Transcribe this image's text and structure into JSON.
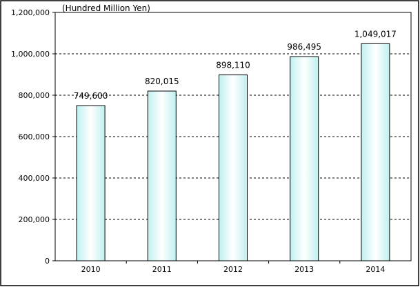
{
  "chart_data": {
    "type": "bar",
    "unit_label": "(Hundred Million Yen)",
    "categories": [
      "2010",
      "2011",
      "2012",
      "2013",
      "2014"
    ],
    "values": [
      749600,
      820015,
      898110,
      986495,
      1049017
    ],
    "data_labels": [
      "749,600",
      "820,015",
      "898,110",
      "986,495",
      "1,049,017"
    ],
    "ylim": [
      0,
      1200000
    ],
    "yticks": [
      0,
      200000,
      400000,
      600000,
      800000,
      1000000,
      1200000
    ],
    "ytick_labels": [
      "0",
      "200,000",
      "400,000",
      "600,000",
      "800,000",
      "1,000,000",
      "1,200,000"
    ],
    "grid": true,
    "bar_fill_center": "#ffffff",
    "bar_fill_edge": "#bff0f0",
    "bar_stroke": "#000000"
  }
}
